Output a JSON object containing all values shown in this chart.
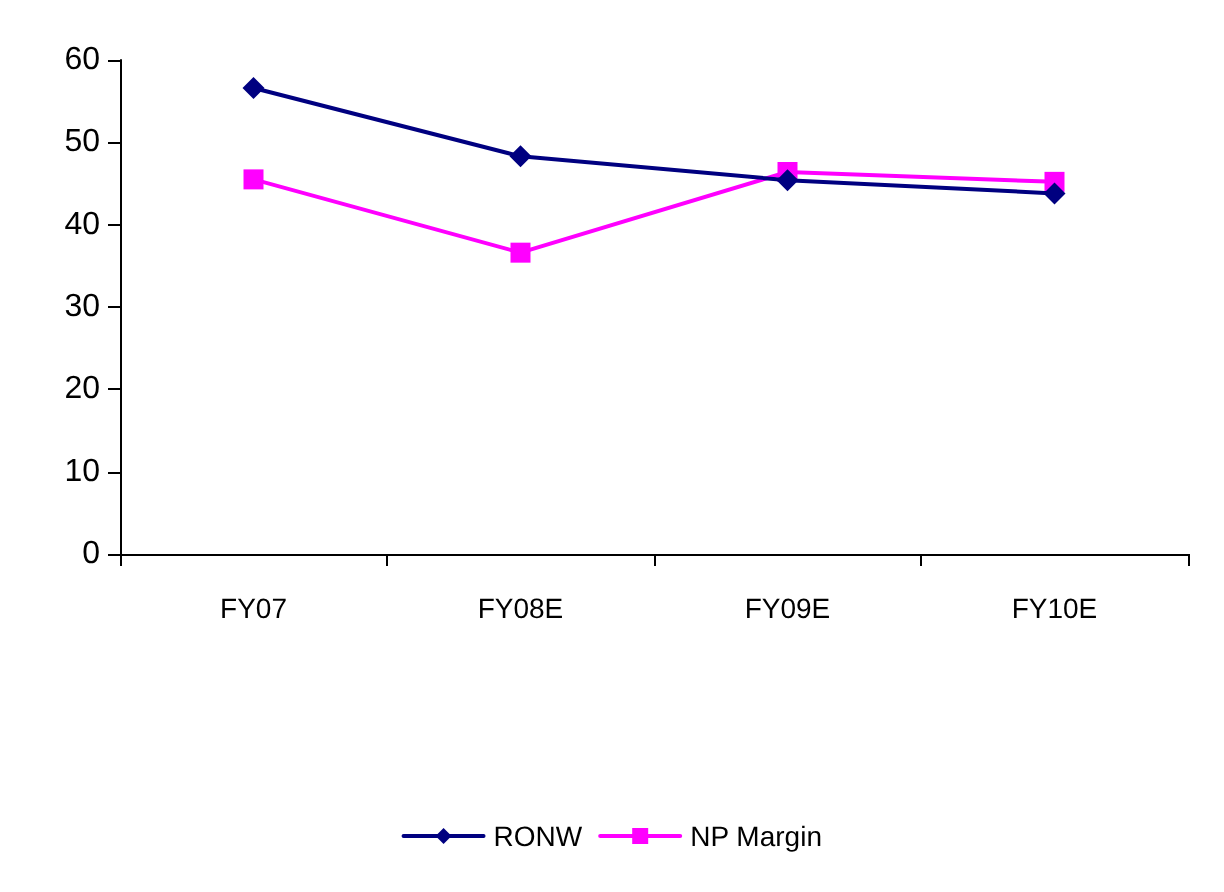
{
  "chart_data": {
    "type": "line",
    "categories": [
      "FY07",
      "FY08E",
      "FY09E",
      "FY10E"
    ],
    "series": [
      {
        "name": "RONW",
        "color": "#000080",
        "marker": "diamond",
        "values": [
          56.6,
          48.3,
          45.4,
          43.8
        ]
      },
      {
        "name": "NP Margin",
        "color": "#ff00ff",
        "marker": "square",
        "values": [
          45.5,
          36.6,
          46.4,
          45.2
        ]
      }
    ],
    "ylim": [
      0,
      60
    ],
    "yticks": [
      0,
      10,
      20,
      30,
      40,
      50,
      60
    ],
    "grid": false,
    "legend": "bottom",
    "line_style": "solid"
  }
}
